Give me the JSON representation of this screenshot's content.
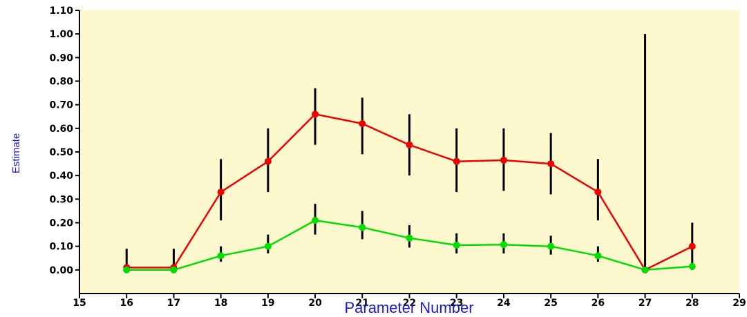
{
  "chart_data": {
    "type": "line",
    "title": "",
    "xlabel": "Parameter Number",
    "ylabel": "Estimate",
    "xlim": [
      15,
      29
    ],
    "ylim": [
      -0.1,
      1.1
    ],
    "x_ticks": [
      "15",
      "16",
      "17",
      "18",
      "19",
      "20",
      "21",
      "22",
      "23",
      "24",
      "25",
      "26",
      "27",
      "28",
      "29"
    ],
    "y_ticks": [
      "0.00",
      "0.10",
      "0.20",
      "0.30",
      "0.40",
      "0.50",
      "0.60",
      "0.70",
      "0.80",
      "0.90",
      "1.00",
      "1.10"
    ],
    "grid": false,
    "x": [
      16,
      17,
      18,
      19,
      20,
      21,
      22,
      23,
      24,
      25,
      26,
      27,
      28
    ],
    "series": [
      {
        "color": "#ee0000",
        "values": [
          0.01,
          0.01,
          0.33,
          0.46,
          0.66,
          0.62,
          0.53,
          0.46,
          0.465,
          0.45,
          0.33,
          0.0,
          0.1
        ],
        "error_low": [
          0.0,
          0.0,
          0.21,
          0.33,
          0.53,
          0.49,
          0.4,
          0.33,
          0.335,
          0.32,
          0.21,
          0.0,
          0.0
        ],
        "error_high": [
          0.09,
          0.09,
          0.47,
          0.6,
          0.77,
          0.73,
          0.66,
          0.6,
          0.6,
          0.58,
          0.47,
          1.0,
          0.2
        ]
      },
      {
        "color": "#00dd00",
        "values": [
          0.0,
          0.0,
          0.06,
          0.1,
          0.21,
          0.18,
          0.135,
          0.105,
          0.107,
          0.1,
          0.06,
          0.0,
          0.015
        ],
        "error_low": [
          0.0,
          0.0,
          0.035,
          0.07,
          0.15,
          0.13,
          0.095,
          0.07,
          0.07,
          0.065,
          0.035,
          0.0,
          0.005
        ],
        "error_high": [
          0.0,
          0.0,
          0.1,
          0.15,
          0.28,
          0.25,
          0.19,
          0.155,
          0.155,
          0.145,
          0.1,
          0.0,
          0.02
        ]
      }
    ],
    "colors": {
      "plot_background": "#fdf8cd",
      "axis": "#000000",
      "error_bar": "#000000",
      "axis_title": "#1a1acc"
    }
  }
}
